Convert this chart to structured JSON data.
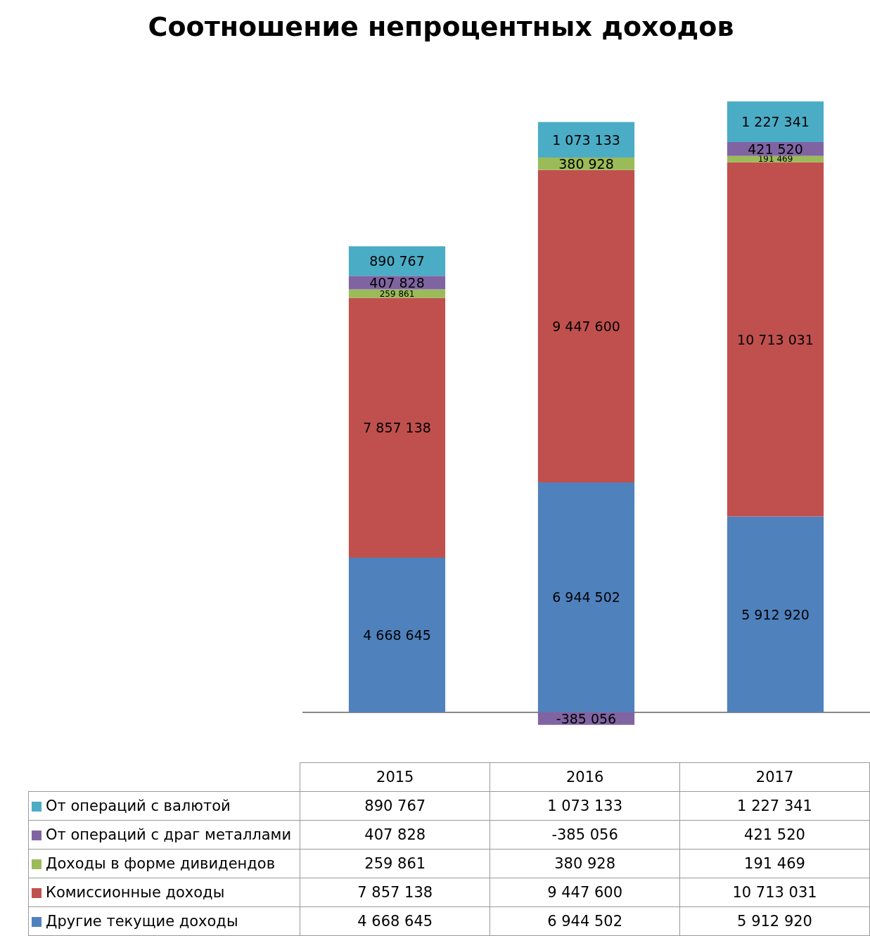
{
  "chart_data": {
    "type": "bar",
    "title": "Соотношение непроцентных доходов",
    "categories": [
      "2015",
      "2016",
      "2017"
    ],
    "stacked": true,
    "legend": "bottom",
    "tick_labels": false,
    "grid": false,
    "series": [
      {
        "name": "Другие текущие доходы",
        "color": "#4f81bd",
        "values": [
          4668645,
          6944502,
          5912920
        ],
        "value_labels": [
          "4 668 645",
          "6 944 502",
          "5 912 920"
        ]
      },
      {
        "name": "Комиссионные доходы",
        "color": "#c0504d",
        "values": [
          7857138,
          9447600,
          10713031
        ],
        "value_labels": [
          "7 857 138",
          "9 447 600",
          "10 713 031"
        ]
      },
      {
        "name": "Доходы в форме дивидендов",
        "color": "#9bbb59",
        "values": [
          259861,
          380928,
          191469
        ],
        "value_labels": [
          "259 861",
          "380 928",
          "191 469"
        ]
      },
      {
        "name": "От операций с драг металлами",
        "color": "#8064a2",
        "values": [
          407828,
          -385056,
          421520
        ],
        "value_labels": [
          "407 828",
          "-385 056",
          "421 520"
        ]
      },
      {
        "name": "От операций с валютой",
        "color": "#4bacc6",
        "values": [
          890767,
          1073133,
          1227341
        ],
        "value_labels": [
          "890 767",
          "1 073 133",
          "1 227 341"
        ]
      }
    ]
  }
}
